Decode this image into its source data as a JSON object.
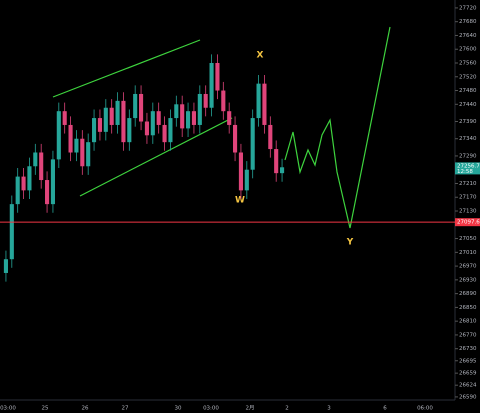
{
  "chart_data": {
    "type": "candlestick",
    "up_color": "#26a69a",
    "down_color": "#e0457b",
    "open": [
      26950,
      26990,
      27150,
      27230,
      27190,
      27260,
      27300,
      27220,
      27150,
      27280,
      27420,
      27380,
      27300,
      27340,
      27260,
      27330,
      27400,
      27360,
      27430,
      27380,
      27450,
      27330,
      27400,
      27470,
      27390,
      27350,
      27420,
      27380,
      27330,
      27400,
      27440,
      27370,
      27420,
      27380,
      27470,
      27430,
      27560,
      27480,
      27420,
      27380,
      27300,
      27190,
      27250,
      27400,
      27500,
      27380,
      27310,
      27240
    ],
    "high": [
      27015,
      27175,
      27255,
      27255,
      27285,
      27325,
      27325,
      27245,
      27305,
      27445,
      27445,
      27405,
      27365,
      27365,
      27355,
      27425,
      27425,
      27455,
      27455,
      27475,
      27475,
      27425,
      27495,
      27495,
      27415,
      27445,
      27445,
      27405,
      27425,
      27465,
      27465,
      27445,
      27445,
      27495,
      27495,
      27585,
      27585,
      27505,
      27445,
      27405,
      27325,
      27275,
      27425,
      27525,
      27525,
      27405,
      27335,
      27282
    ],
    "low": [
      26925,
      26965,
      27125,
      27165,
      27165,
      27235,
      27195,
      27125,
      27125,
      27255,
      27355,
      27275,
      27275,
      27235,
      27235,
      27305,
      27335,
      27335,
      27355,
      27355,
      27305,
      27305,
      27375,
      27365,
      27325,
      27325,
      27355,
      27305,
      27305,
      27375,
      27345,
      27345,
      27355,
      27355,
      27405,
      27405,
      27455,
      27395,
      27355,
      27275,
      27165,
      27165,
      27225,
      27375,
      27355,
      27285,
      27215,
      27215
    ],
    "close": [
      26990,
      27150,
      27230,
      27190,
      27260,
      27300,
      27220,
      27150,
      27280,
      27420,
      27380,
      27300,
      27340,
      27260,
      27330,
      27400,
      27360,
      27430,
      27380,
      27450,
      27330,
      27400,
      27470,
      27390,
      27350,
      27420,
      27380,
      27330,
      27400,
      27440,
      27370,
      27420,
      27380,
      27470,
      27430,
      27560,
      27480,
      27420,
      27380,
      27300,
      27190,
      27250,
      27400,
      27500,
      27380,
      27310,
      27240,
      27257
    ],
    "ylim": [
      26581,
      27743
    ],
    "yticks": [
      27720,
      27680,
      27640,
      27600,
      27560,
      27520,
      27480,
      27440,
      27390,
      27340,
      27290,
      27250,
      27210,
      27170,
      27130,
      27050,
      27010,
      26970,
      26930,
      26890,
      26850,
      26810,
      26770,
      26730,
      26695,
      26659,
      26624,
      26590
    ],
    "xtick_labels": [
      "03:00",
      "25",
      "26",
      "27",
      "30",
      "03:00",
      "2月",
      "2",
      "3",
      "6",
      "06:00"
    ],
    "level": {
      "value": 27097.6,
      "label": "27097.6",
      "color": "#f23645"
    },
    "last_price": {
      "value": 27256.7,
      "label": "27256.7",
      "countdown": "12:58"
    },
    "annotations": [
      "W",
      "X",
      "Y"
    ]
  }
}
